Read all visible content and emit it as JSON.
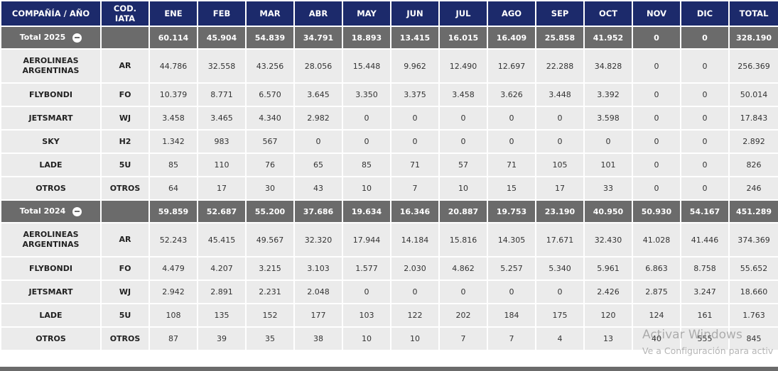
{
  "table": {
    "header": [
      "COMPAÑÍA / AÑO",
      "COD. IATA",
      "ENE",
      "FEB",
      "MAR",
      "ABR",
      "MAY",
      "JUN",
      "JUL",
      "AGO",
      "SEP",
      "OCT",
      "NOV",
      "DIC",
      "TOTAL"
    ],
    "groups": [
      {
        "total": [
          "Total 2025",
          "",
          "60.114",
          "45.904",
          "54.839",
          "34.791",
          "18.893",
          "13.415",
          "16.015",
          "16.409",
          "25.858",
          "41.952",
          "0",
          "0",
          "328.190"
        ],
        "rows": [
          [
            "AEROLINEAS ARGENTINAS",
            "AR",
            "44.786",
            "32.558",
            "43.256",
            "28.056",
            "15.448",
            "9.962",
            "12.490",
            "12.697",
            "22.288",
            "34.828",
            "0",
            "0",
            "256.369"
          ],
          [
            "FLYBONDI",
            "FO",
            "10.379",
            "8.771",
            "6.570",
            "3.645",
            "3.350",
            "3.375",
            "3.458",
            "3.626",
            "3.448",
            "3.392",
            "0",
            "0",
            "50.014"
          ],
          [
            "JETSMART",
            "WJ",
            "3.458",
            "3.465",
            "4.340",
            "2.982",
            "0",
            "0",
            "0",
            "0",
            "0",
            "3.598",
            "0",
            "0",
            "17.843"
          ],
          [
            "SKY",
            "H2",
            "1.342",
            "983",
            "567",
            "0",
            "0",
            "0",
            "0",
            "0",
            "0",
            "0",
            "0",
            "0",
            "2.892"
          ],
          [
            "LADE",
            "5U",
            "85",
            "110",
            "76",
            "65",
            "85",
            "71",
            "57",
            "71",
            "105",
            "101",
            "0",
            "0",
            "826"
          ],
          [
            "OTROS",
            "OTROS",
            "64",
            "17",
            "30",
            "43",
            "10",
            "7",
            "10",
            "15",
            "17",
            "33",
            "0",
            "0",
            "246"
          ]
        ]
      },
      {
        "total": [
          "Total 2024",
          "",
          "59.859",
          "52.687",
          "55.200",
          "37.686",
          "19.634",
          "16.346",
          "20.887",
          "19.753",
          "23.190",
          "40.950",
          "50.930",
          "54.167",
          "451.289"
        ],
        "rows": [
          [
            "AEROLINEAS ARGENTINAS",
            "AR",
            "52.243",
            "45.415",
            "49.567",
            "32.320",
            "17.944",
            "14.184",
            "15.816",
            "14.305",
            "17.671",
            "32.430",
            "41.028",
            "41.446",
            "374.369"
          ],
          [
            "FLYBONDI",
            "FO",
            "4.479",
            "4.207",
            "3.215",
            "3.103",
            "1.577",
            "2.030",
            "4.862",
            "5.257",
            "5.340",
            "5.961",
            "6.863",
            "8.758",
            "55.652"
          ],
          [
            "JETSMART",
            "WJ",
            "2.942",
            "2.891",
            "2.231",
            "2.048",
            "0",
            "0",
            "0",
            "0",
            "0",
            "2.426",
            "2.875",
            "3.247",
            "18.660"
          ],
          [
            "LADE",
            "5U",
            "108",
            "135",
            "152",
            "177",
            "103",
            "122",
            "202",
            "184",
            "175",
            "120",
            "124",
            "161",
            "1.763"
          ],
          [
            "OTROS",
            "OTROS",
            "87",
            "39",
            "35",
            "38",
            "10",
            "10",
            "7",
            "7",
            "4",
            "13",
            "40",
            "555",
            "845"
          ]
        ]
      }
    ]
  },
  "watermark": {
    "title": "Activar Windows",
    "subtitle": "Ve a Configuración para activ"
  }
}
